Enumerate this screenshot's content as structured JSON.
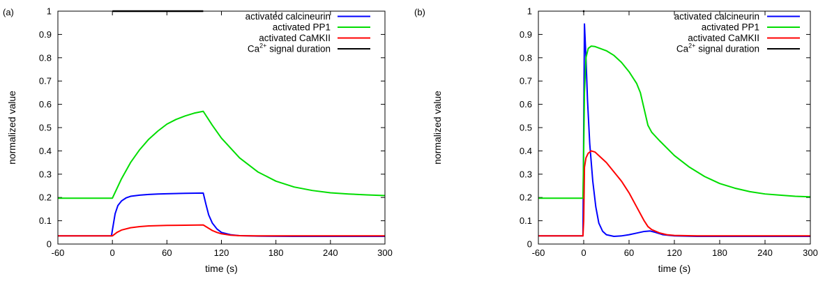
{
  "chart_data": [
    {
      "panel_label": "(a)",
      "type": "line",
      "xlabel": "time (s)",
      "ylabel": "normalized value",
      "xlim": [
        -60,
        300
      ],
      "ylim": [
        0,
        1
      ],
      "xticks": [
        -60,
        0,
        60,
        120,
        180,
        240,
        300
      ],
      "yticks": [
        0,
        0.1,
        0.2,
        0.3,
        0.4,
        0.5,
        0.6,
        0.7,
        0.8,
        0.9,
        1
      ],
      "legend_placement": "top-right",
      "series": [
        {
          "name": "activated calcineurin",
          "color": "#0000ff",
          "x": [
            -60,
            -1,
            0,
            3,
            6,
            10,
            15,
            20,
            30,
            40,
            50,
            60,
            80,
            100,
            103,
            106,
            110,
            115,
            120,
            130,
            140,
            160,
            200,
            300
          ],
          "y": [
            0.035,
            0.035,
            0.06,
            0.13,
            0.165,
            0.185,
            0.198,
            0.205,
            0.21,
            0.213,
            0.215,
            0.216,
            0.218,
            0.219,
            0.17,
            0.125,
            0.09,
            0.065,
            0.05,
            0.04,
            0.036,
            0.034,
            0.033,
            0.033
          ]
        },
        {
          "name": "activated PP1",
          "color": "#00dd00",
          "x": [
            -60,
            0,
            10,
            20,
            30,
            40,
            50,
            60,
            70,
            80,
            90,
            100,
            110,
            120,
            140,
            160,
            180,
            200,
            220,
            240,
            260,
            280,
            300
          ],
          "y": [
            0.197,
            0.197,
            0.28,
            0.35,
            0.405,
            0.45,
            0.485,
            0.515,
            0.535,
            0.55,
            0.562,
            0.57,
            0.51,
            0.455,
            0.37,
            0.31,
            0.27,
            0.245,
            0.23,
            0.22,
            0.215,
            0.211,
            0.208
          ]
        },
        {
          "name": "activated CaMKII",
          "color": "#ff0000",
          "x": [
            -60,
            0,
            5,
            10,
            20,
            30,
            40,
            60,
            80,
            100,
            105,
            110,
            115,
            120,
            130,
            140,
            160,
            200,
            300
          ],
          "y": [
            0.035,
            0.035,
            0.05,
            0.06,
            0.07,
            0.075,
            0.078,
            0.08,
            0.081,
            0.082,
            0.07,
            0.058,
            0.05,
            0.044,
            0.038,
            0.036,
            0.035,
            0.035,
            0.035
          ]
        },
        {
          "name_prefix": "Ca",
          "name_sup": "2+",
          "name_suffix": " signal duration",
          "color": "#000000",
          "x": [
            0,
            100
          ],
          "y": [
            1,
            1
          ]
        }
      ]
    },
    {
      "panel_label": "(b)",
      "type": "line",
      "xlabel": "time (s)",
      "ylabel": "normalized value",
      "xlim": [
        -60,
        300
      ],
      "ylim": [
        0,
        1
      ],
      "xticks": [
        -60,
        0,
        60,
        120,
        180,
        240,
        300
      ],
      "yticks": [
        0,
        0.1,
        0.2,
        0.3,
        0.4,
        0.5,
        0.6,
        0.7,
        0.8,
        0.9,
        1
      ],
      "legend_placement": "top-right",
      "series": [
        {
          "name": "activated calcineurin",
          "color": "#0000ff",
          "x": [
            -60,
            -1,
            0,
            1,
            3,
            5,
            8,
            12,
            16,
            20,
            25,
            30,
            40,
            50,
            60,
            70,
            80,
            88,
            95,
            105,
            120,
            150,
            200,
            300
          ],
          "y": [
            0.035,
            0.035,
            0.5,
            0.945,
            0.8,
            0.62,
            0.43,
            0.27,
            0.16,
            0.09,
            0.055,
            0.04,
            0.033,
            0.035,
            0.04,
            0.047,
            0.054,
            0.056,
            0.05,
            0.04,
            0.035,
            0.033,
            0.033,
            0.033
          ]
        },
        {
          "name": "activated PP1",
          "color": "#00dd00",
          "x": [
            -60,
            -1,
            0,
            1,
            3,
            6,
            10,
            15,
            20,
            30,
            40,
            50,
            60,
            70,
            75,
            80,
            85,
            90,
            100,
            120,
            140,
            160,
            180,
            200,
            220,
            240,
            260,
            280,
            300
          ],
          "y": [
            0.197,
            0.197,
            0.4,
            0.65,
            0.8,
            0.84,
            0.85,
            0.848,
            0.842,
            0.83,
            0.81,
            0.78,
            0.74,
            0.69,
            0.65,
            0.58,
            0.51,
            0.48,
            0.445,
            0.38,
            0.33,
            0.29,
            0.26,
            0.24,
            0.225,
            0.215,
            0.21,
            0.205,
            0.203
          ]
        },
        {
          "name": "activated CaMKII",
          "color": "#ff0000",
          "x": [
            -60,
            -1,
            0,
            1,
            3,
            6,
            10,
            15,
            20,
            30,
            40,
            50,
            60,
            70,
            80,
            85,
            90,
            100,
            110,
            120,
            150,
            200,
            300
          ],
          "y": [
            0.035,
            0.035,
            0.1,
            0.33,
            0.37,
            0.39,
            0.4,
            0.395,
            0.38,
            0.35,
            0.31,
            0.27,
            0.22,
            0.16,
            0.1,
            0.075,
            0.062,
            0.048,
            0.04,
            0.037,
            0.035,
            0.035,
            0.035
          ]
        },
        {
          "name_prefix": "Ca",
          "name_sup": "2+",
          "name_suffix": " signal duration",
          "color": "#000000",
          "x": [
            -1,
            1
          ],
          "y": [
            1,
            1
          ]
        }
      ]
    }
  ]
}
